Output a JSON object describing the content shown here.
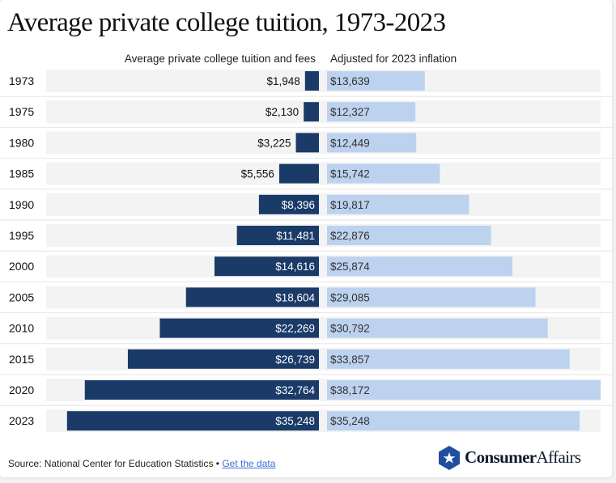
{
  "title": "Average private college tuition, 1973-2023",
  "col_headers": {
    "left": "Average private college tuition and fees",
    "right": "Adjusted for 2023 inflation"
  },
  "chart_data": {
    "type": "bar",
    "title": "Average private college tuition, 1973-2023",
    "categories": [
      "1973",
      "1975",
      "1980",
      "1985",
      "1990",
      "1995",
      "2000",
      "2005",
      "2010",
      "2015",
      "2020",
      "2023"
    ],
    "series": [
      {
        "name": "Average private college tuition and fees",
        "values": [
          1948,
          2130,
          3225,
          5556,
          8396,
          11481,
          14616,
          18604,
          22269,
          26739,
          32764,
          35248
        ],
        "labels": [
          "$1,948",
          "$2,130",
          "$3,225",
          "$5,556",
          "$8,396",
          "$11,481",
          "$14,616",
          "$18,604",
          "$22,269",
          "$26,739",
          "$32,764",
          "$35,248"
        ],
        "color": "#1a3a68"
      },
      {
        "name": "Adjusted for 2023 inflation",
        "values": [
          13639,
          12327,
          12449,
          15742,
          19817,
          22876,
          25874,
          29085,
          30792,
          33857,
          38172,
          35248
        ],
        "labels": [
          "$13,639",
          "$12,327",
          "$12,449",
          "$15,742",
          "$19,817",
          "$22,876",
          "$25,874",
          "$29,085",
          "$30,792",
          "$33,857",
          "$38,172",
          "$35,248"
        ],
        "color": "#bcd2ee"
      }
    ],
    "xlim": [
      0,
      38172
    ],
    "grid": false,
    "legend": "top"
  },
  "footer": {
    "source": "Source: National Center for Education Statistics •",
    "link": "Get the data"
  },
  "logo": {
    "bold": "Consumer",
    "thin": "Affairs"
  }
}
